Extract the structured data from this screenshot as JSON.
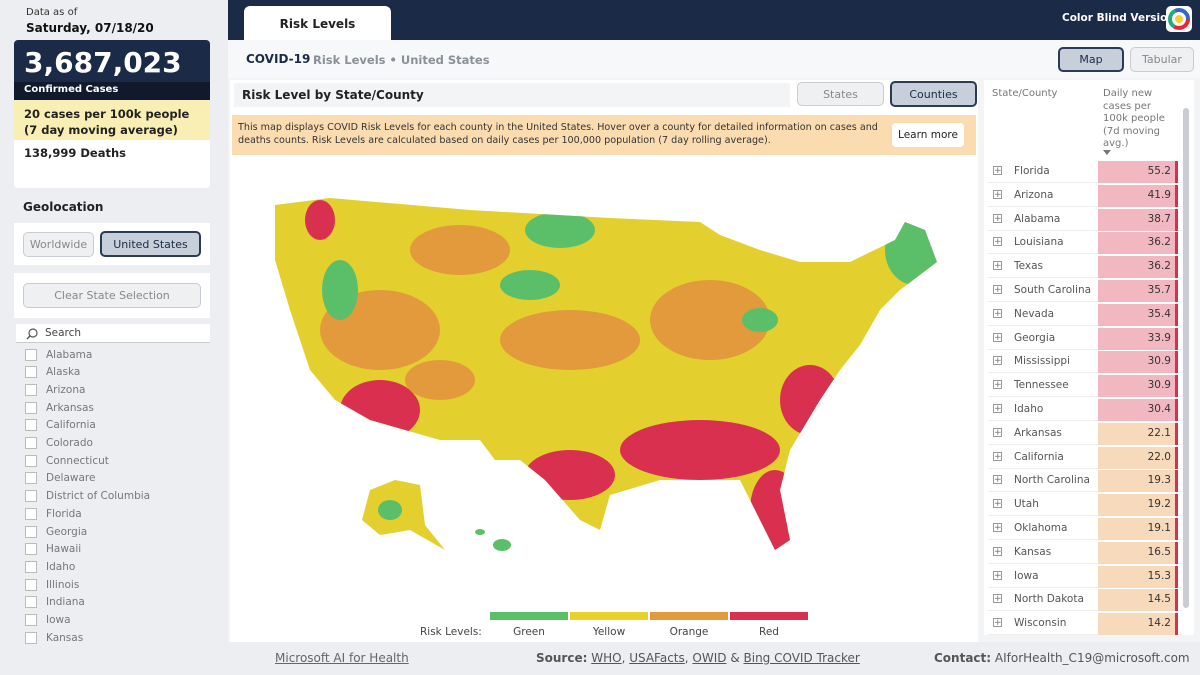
{
  "sidebar": {
    "data_as_of": "Data as of",
    "date": "Saturday, 07/18/20",
    "confirmed": "3,687,023",
    "confirmed_label": "Confirmed Cases",
    "rate": "20 cases per 100k people (7 day moving average)",
    "deaths": "138,999 Deaths",
    "geolocation": "Geolocation",
    "geo_buttons": [
      "Worldwide",
      "United States"
    ],
    "clear": "Clear State Selection",
    "search": "Search",
    "states": [
      "Alabama",
      "Alaska",
      "Arizona",
      "Arkansas",
      "California",
      "Colorado",
      "Connecticut",
      "Delaware",
      "District of Columbia",
      "Florida",
      "Georgia",
      "Hawaii",
      "Idaho",
      "Illinois",
      "Indiana",
      "Iowa",
      "Kansas"
    ]
  },
  "header": {
    "tab": "Risk Levels",
    "color_blind": "Color Blind Version"
  },
  "subheader": {
    "title": "COVID-19",
    "subtitle": "Risk Levels • United States",
    "views": [
      "Map",
      "Tabular"
    ]
  },
  "panel": {
    "title": "Risk Level by State/County",
    "toggles": [
      "States",
      "Counties"
    ],
    "info": "This map displays COVID Risk Levels for each county in the United States. Hover over a county for detailed information on cases and deaths counts. Risk Levels are calculated based on daily cases per 100,000 population (7 day rolling average).",
    "learn_more": "Learn more",
    "legend_title": "Risk Levels:",
    "legend": [
      {
        "name": "Green",
        "color": "#5bbf6a"
      },
      {
        "name": "Yellow",
        "color": "#e6d22a"
      },
      {
        "name": "Orange",
        "color": "#e29a3c"
      },
      {
        "name": "Red",
        "color": "#d9304f"
      }
    ]
  },
  "table": {
    "headers": [
      "State/County",
      "Daily new cases per 100k people (7d moving avg.)"
    ],
    "rows": [
      {
        "name": "Florida",
        "value": "55.2",
        "color": "#f2b8c2"
      },
      {
        "name": "Arizona",
        "value": "41.9",
        "color": "#f2b8c2"
      },
      {
        "name": "Alabama",
        "value": "38.7",
        "color": "#f2b8c2"
      },
      {
        "name": "Louisiana",
        "value": "36.2",
        "color": "#f2b8c2"
      },
      {
        "name": "Texas",
        "value": "36.2",
        "color": "#f2b8c2"
      },
      {
        "name": "South Carolina",
        "value": "35.7",
        "color": "#f2b8c2"
      },
      {
        "name": "Nevada",
        "value": "35.4",
        "color": "#f2b8c2"
      },
      {
        "name": "Georgia",
        "value": "33.9",
        "color": "#f2b8c2"
      },
      {
        "name": "Mississippi",
        "value": "30.9",
        "color": "#f2b8c2"
      },
      {
        "name": "Tennessee",
        "value": "30.9",
        "color": "#f2b8c2"
      },
      {
        "name": "Idaho",
        "value": "30.4",
        "color": "#f2b8c2"
      },
      {
        "name": "Arkansas",
        "value": "22.1",
        "color": "#f7d9bb"
      },
      {
        "name": "California",
        "value": "22.0",
        "color": "#f7d9bb"
      },
      {
        "name": "North Carolina",
        "value": "19.3",
        "color": "#f7d9bb"
      },
      {
        "name": "Utah",
        "value": "19.2",
        "color": "#f7d9bb"
      },
      {
        "name": "Oklahoma",
        "value": "19.1",
        "color": "#f7d9bb"
      },
      {
        "name": "Kansas",
        "value": "16.5",
        "color": "#f7d9bb"
      },
      {
        "name": "Iowa",
        "value": "15.3",
        "color": "#f7d9bb"
      },
      {
        "name": "North Dakota",
        "value": "14.5",
        "color": "#f7d9bb"
      },
      {
        "name": "Wisconsin",
        "value": "14.2",
        "color": "#f7d9bb"
      }
    ]
  },
  "footer": {
    "org": "Microsoft AI for Health",
    "source_label": "Source:",
    "source_parts": [
      {
        "text": "WHO",
        "link": true
      },
      {
        "text": ", "
      },
      {
        "text": "USAFacts",
        "link": true
      },
      {
        "text": ", "
      },
      {
        "text": "OWID",
        "link": true
      },
      {
        "text": " & "
      },
      {
        "text": "Bing COVID Tracker",
        "link": true
      }
    ],
    "contact_label": "Contact:",
    "contact": "AIforHealth_C19@microsoft.com"
  }
}
